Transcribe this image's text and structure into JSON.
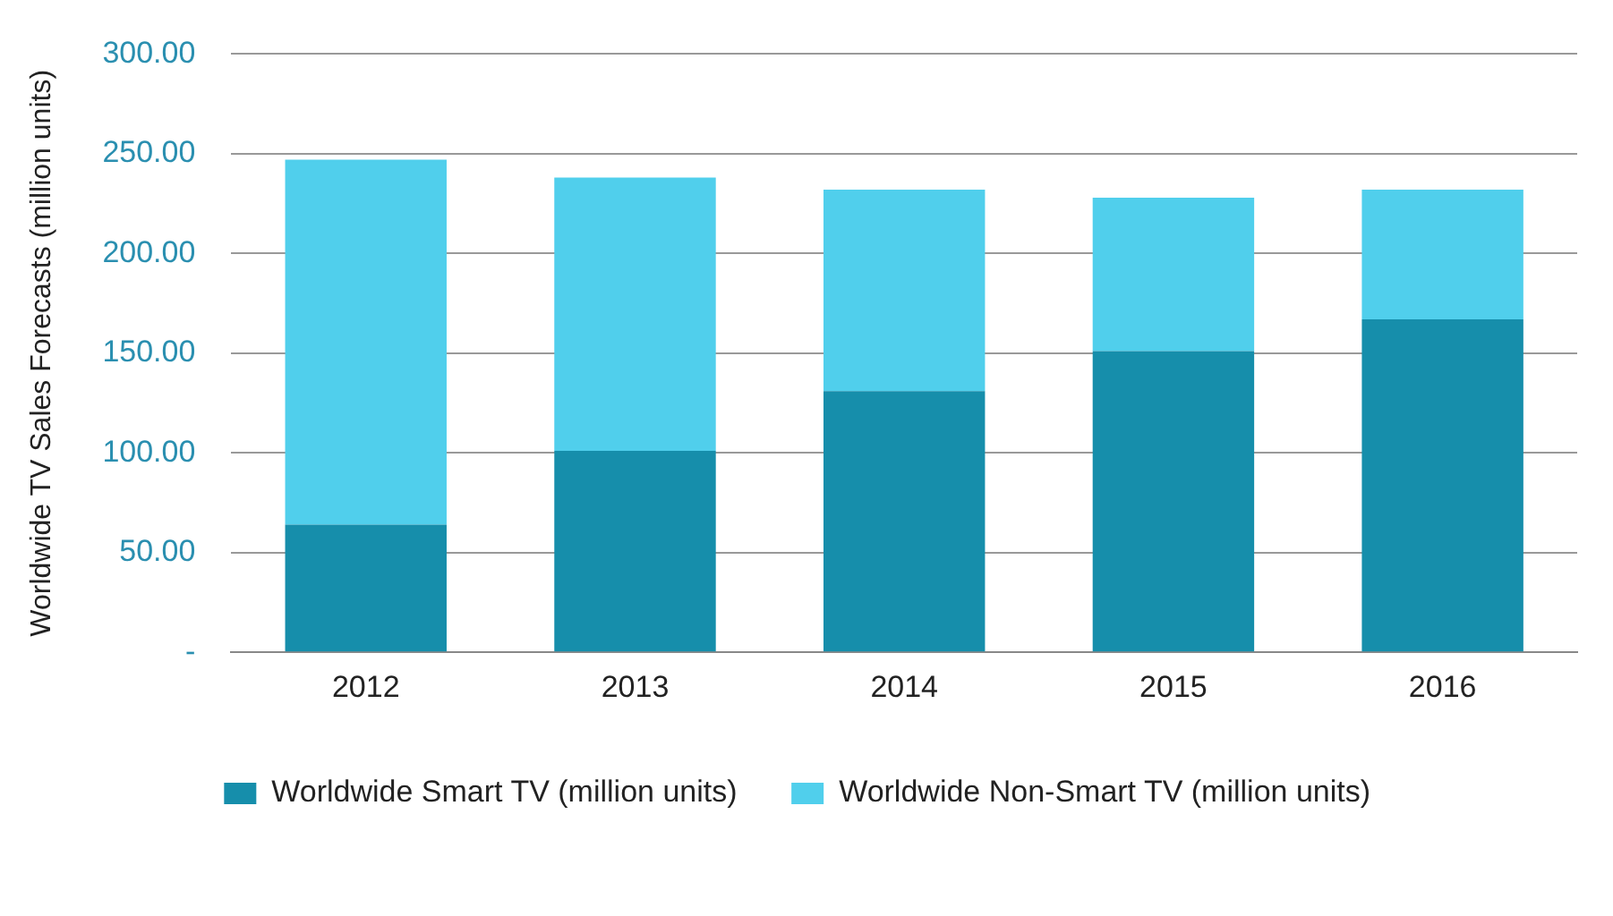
{
  "chart_data": {
    "type": "bar",
    "stacked": true,
    "ylabel": "Worldwide TV Sales Forecasts (million units)",
    "categories": [
      "2012",
      "2013",
      "2014",
      "2015",
      "2016"
    ],
    "series": [
      {
        "name": "Worldwide Smart TV (million units)",
        "color": "#168eab",
        "values": [
          64,
          101,
          131,
          151,
          167
        ]
      },
      {
        "name": "Worldwide Non-Smart TV (million units)",
        "color": "#50cfec",
        "values": [
          183,
          137,
          101,
          77,
          65
        ]
      }
    ],
    "ylim": [
      0,
      300
    ],
    "yticks": [
      {
        "value": 0,
        "label": "-"
      },
      {
        "value": 50,
        "label": "50.00"
      },
      {
        "value": 100,
        "label": "100.00"
      },
      {
        "value": 150,
        "label": "150.00"
      },
      {
        "value": 200,
        "label": "200.00"
      },
      {
        "value": 250,
        "label": "250.00"
      },
      {
        "value": 300,
        "label": "300.00"
      }
    ],
    "grid": "y",
    "legend": "bottom"
  }
}
